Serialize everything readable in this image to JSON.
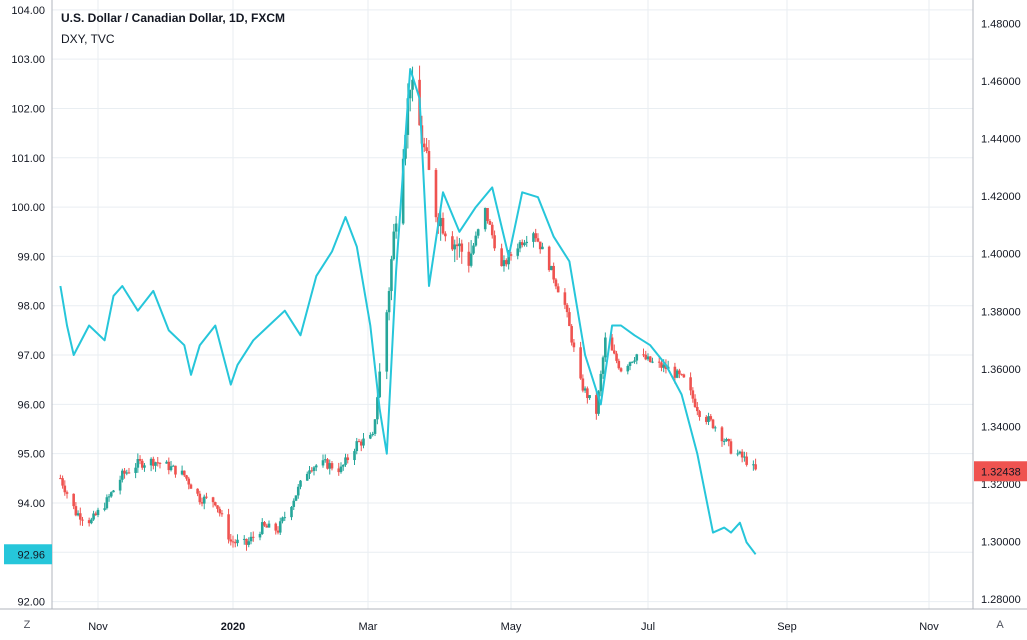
{
  "legend": {
    "title": "U.S. Dollar / Canadian Dollar, 1D, FXCM",
    "subtitle": "DXY, TVC"
  },
  "axis_buttons": {
    "left": "Z",
    "right": "A"
  },
  "colors": {
    "up": "#26a69a",
    "down": "#ef5350",
    "dxy_line": "#26c6da",
    "grid": "#e9eef2",
    "axis_line": "#b2b5be"
  },
  "chart_data": {
    "type": "candlestick+line",
    "x_ticks": [
      "Nov",
      "2020",
      "Mar",
      "May",
      "Jul",
      "Sep",
      "Nov"
    ],
    "left_axis": {
      "name": "DXY",
      "ticks": [
        "104.00",
        "103.00",
        "102.00",
        "101.00",
        "100.00",
        "99.00",
        "98.00",
        "97.00",
        "96.00",
        "95.00",
        "94.00",
        "93.00",
        "92.00"
      ],
      "range": [
        91.85,
        104.2
      ],
      "last_value_label": "92.96"
    },
    "right_axis": {
      "name": "USDCAD",
      "ticks": [
        "1.48000",
        "1.46000",
        "1.44000",
        "1.42000",
        "1.40000",
        "1.38000",
        "1.36000",
        "1.34000",
        "1.32000",
        "1.30000",
        "1.28000"
      ],
      "range": [
        1.2765,
        1.4882
      ],
      "last_value_label": "1.32438"
    },
    "usdcad_close_path": [
      [
        "2019-10-15",
        1.322
      ],
      [
        "2019-10-22",
        1.31
      ],
      [
        "2019-10-29",
        1.307
      ],
      [
        "2019-11-05",
        1.314
      ],
      [
        "2019-11-12",
        1.323
      ],
      [
        "2019-11-19",
        1.327
      ],
      [
        "2019-11-26",
        1.328
      ],
      [
        "2019-12-03",
        1.326
      ],
      [
        "2019-12-10",
        1.323
      ],
      [
        "2019-12-17",
        1.315
      ],
      [
        "2019-12-24",
        1.314
      ],
      [
        "2019-12-31",
        1.3
      ],
      [
        "2020-01-07",
        1.299
      ],
      [
        "2020-01-14",
        1.305
      ],
      [
        "2020-01-21",
        1.304
      ],
      [
        "2020-01-28",
        1.315
      ],
      [
        "2020-02-04",
        1.326
      ],
      [
        "2020-02-11",
        1.327
      ],
      [
        "2020-02-18",
        1.325
      ],
      [
        "2020-02-25",
        1.334
      ],
      [
        "2020-03-03",
        1.336
      ],
      [
        "2020-03-09",
        1.38
      ],
      [
        "2020-03-13",
        1.415
      ],
      [
        "2020-03-19",
        1.46
      ],
      [
        "2020-03-24",
        1.44
      ],
      [
        "2020-03-30",
        1.415
      ],
      [
        "2020-04-06",
        1.405
      ],
      [
        "2020-04-13",
        1.398
      ],
      [
        "2020-04-20",
        1.415
      ],
      [
        "2020-04-27",
        1.395
      ],
      [
        "2020-05-04",
        1.403
      ],
      [
        "2020-05-11",
        1.408
      ],
      [
        "2020-05-18",
        1.396
      ],
      [
        "2020-05-25",
        1.382
      ],
      [
        "2020-06-01",
        1.355
      ],
      [
        "2020-06-08",
        1.345
      ],
      [
        "2020-06-12",
        1.37
      ],
      [
        "2020-06-19",
        1.36
      ],
      [
        "2020-06-26",
        1.365
      ],
      [
        "2020-07-03",
        1.362
      ],
      [
        "2020-07-10",
        1.36
      ],
      [
        "2020-07-17",
        1.356
      ],
      [
        "2020-07-24",
        1.345
      ],
      [
        "2020-07-31",
        1.34
      ],
      [
        "2020-08-07",
        1.332
      ],
      [
        "2020-08-14",
        1.328
      ],
      [
        "2020-08-18",
        1.3244
      ]
    ],
    "dxy_line": [
      [
        "2019-10-15",
        98.4
      ],
      [
        "2019-10-18",
        97.6
      ],
      [
        "2019-10-21",
        97.0
      ],
      [
        "2019-10-28",
        97.6
      ],
      [
        "2019-11-04",
        97.3
      ],
      [
        "2019-11-08",
        98.2
      ],
      [
        "2019-11-12",
        98.4
      ],
      [
        "2019-11-19",
        97.9
      ],
      [
        "2019-11-26",
        98.3
      ],
      [
        "2019-12-03",
        97.5
      ],
      [
        "2019-12-10",
        97.2
      ],
      [
        "2019-12-13",
        96.6
      ],
      [
        "2019-12-17",
        97.2
      ],
      [
        "2019-12-24",
        97.6
      ],
      [
        "2019-12-31",
        96.4
      ],
      [
        "2020-01-03",
        96.8
      ],
      [
        "2020-01-10",
        97.3
      ],
      [
        "2020-01-17",
        97.6
      ],
      [
        "2020-01-24",
        97.9
      ],
      [
        "2020-01-31",
        97.4
      ],
      [
        "2020-02-07",
        98.6
      ],
      [
        "2020-02-14",
        99.1
      ],
      [
        "2020-02-20",
        99.8
      ],
      [
        "2020-02-25",
        99.2
      ],
      [
        "2020-03-02",
        97.6
      ],
      [
        "2020-03-06",
        95.9
      ],
      [
        "2020-03-09",
        95.0
      ],
      [
        "2020-03-13",
        98.7
      ],
      [
        "2020-03-19",
        102.8
      ],
      [
        "2020-03-23",
        102.2
      ],
      [
        "2020-03-27",
        98.4
      ],
      [
        "2020-04-02",
        100.3
      ],
      [
        "2020-04-09",
        99.5
      ],
      [
        "2020-04-16",
        100.0
      ],
      [
        "2020-04-23",
        100.4
      ],
      [
        "2020-04-30",
        99.0
      ],
      [
        "2020-05-06",
        100.3
      ],
      [
        "2020-05-13",
        100.2
      ],
      [
        "2020-05-20",
        99.4
      ],
      [
        "2020-05-27",
        98.9
      ],
      [
        "2020-06-03",
        97.0
      ],
      [
        "2020-06-10",
        96.0
      ],
      [
        "2020-06-15",
        97.6
      ],
      [
        "2020-06-19",
        97.6
      ],
      [
        "2020-06-25",
        97.4
      ],
      [
        "2020-07-02",
        97.2
      ],
      [
        "2020-07-09",
        96.8
      ],
      [
        "2020-07-16",
        96.2
      ],
      [
        "2020-07-23",
        95.0
      ],
      [
        "2020-07-30",
        93.4
      ],
      [
        "2020-08-04",
        93.5
      ],
      [
        "2020-08-07",
        93.4
      ],
      [
        "2020-08-11",
        93.6
      ],
      [
        "2020-08-14",
        93.2
      ],
      [
        "2020-08-18",
        92.96
      ]
    ]
  }
}
